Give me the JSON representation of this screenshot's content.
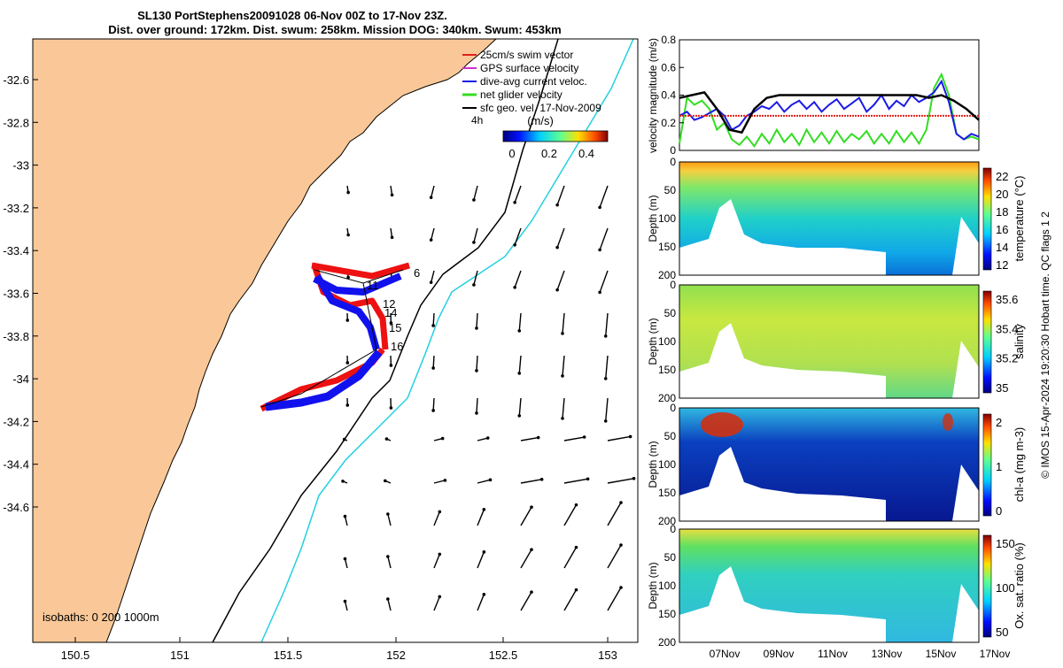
{
  "title": {
    "line1": "SL130 PortStephens20091028 06-Nov 00Z to 17-Nov 23Z.",
    "line2": "Dist. over ground: 172km. Dist. swum: 258km. Mission DOG: 340km. Swum: 453km"
  },
  "map": {
    "lon_ticks": [
      "150.5",
      "151",
      "151.5",
      "152",
      "152.5",
      "153"
    ],
    "lat_ticks": [
      "-32.6",
      "-32.8",
      "-33",
      "-33.2",
      "-33.4",
      "-33.6",
      "-33.8",
      "-34",
      "-34.2",
      "-34.4",
      "-34.6"
    ],
    "legend": [
      {
        "label": "25cm/s swim vector",
        "color": "#e0201a"
      },
      {
        "label": "GPS surface velocity",
        "color": "#d030c8"
      },
      {
        "label": "dive-avg current veloc.",
        "color": "#1a1ae6"
      },
      {
        "label": "net glider velocity",
        "color": "#33dd22"
      },
      {
        "label": "sfc geo. vel. 17-Nov-2009",
        "color": "#000000"
      }
    ],
    "vector_key": "4h",
    "colorbar_unit": "(m/s)",
    "colorbar_ticks": [
      "0",
      "0.2",
      "0.4"
    ],
    "day_labels": [
      "6",
      "11",
      "12",
      "14",
      "15",
      "16"
    ],
    "isobaths": "isobaths: 0   200  1000m",
    "land_color": "#fac898",
    "colors": {
      "isobath_200": "#000000",
      "isobath_1000": "#22d0e0",
      "track_red": "#ee1111",
      "track_blue": "#1111ee"
    }
  },
  "chart_data": [
    {
      "type": "line",
      "title": "",
      "ylabel": "velocity magnitude (m/s)",
      "ylim": [
        0,
        0.8
      ],
      "yticks": [
        "0",
        "0.2",
        "0.4",
        "0.6",
        "0.8"
      ],
      "xlim_days": [
        6,
        18
      ],
      "series": [
        {
          "name": "net glider velocity",
          "color": "#33dd22",
          "x": [
            6.0,
            6.3,
            6.6,
            6.9,
            7.2,
            7.5,
            7.8,
            8.1,
            8.4,
            8.7,
            9.0,
            9.3,
            9.6,
            9.9,
            10.2,
            10.5,
            10.8,
            11.1,
            11.4,
            11.7,
            12.0,
            12.3,
            12.6,
            12.9,
            13.2,
            13.5,
            13.8,
            14.1,
            14.4,
            14.7,
            15.0,
            15.3,
            15.6,
            15.9,
            16.2,
            16.5,
            16.8,
            17.1,
            17.4,
            17.7,
            18.0
          ],
          "y": [
            0.05,
            0.38,
            0.33,
            0.36,
            0.3,
            0.15,
            0.2,
            0.08,
            0.04,
            0.1,
            0.03,
            0.12,
            0.05,
            0.15,
            0.06,
            0.12,
            0.04,
            0.15,
            0.06,
            0.13,
            0.05,
            0.14,
            0.06,
            0.12,
            0.08,
            0.14,
            0.05,
            0.12,
            0.05,
            0.14,
            0.06,
            0.13,
            0.05,
            0.15,
            0.45,
            0.55,
            0.4,
            0.12,
            0.08,
            0.1,
            0.08
          ]
        },
        {
          "name": "dive-avg current veloc.",
          "color": "#1a1ae6",
          "x": [
            6.0,
            6.3,
            6.6,
            6.9,
            7.2,
            7.5,
            7.8,
            8.1,
            8.4,
            8.7,
            9.0,
            9.3,
            9.6,
            9.9,
            10.2,
            10.5,
            10.8,
            11.1,
            11.4,
            11.7,
            12.0,
            12.3,
            12.6,
            12.9,
            13.2,
            13.5,
            13.8,
            14.1,
            14.4,
            14.7,
            15.0,
            15.3,
            15.6,
            15.9,
            16.2,
            16.5,
            16.8,
            17.1,
            17.4,
            17.7,
            18.0
          ],
          "y": [
            0.25,
            0.28,
            0.22,
            0.24,
            0.27,
            0.3,
            0.25,
            0.15,
            0.18,
            0.25,
            0.28,
            0.32,
            0.3,
            0.35,
            0.28,
            0.33,
            0.36,
            0.3,
            0.35,
            0.28,
            0.33,
            0.37,
            0.3,
            0.34,
            0.38,
            0.28,
            0.33,
            0.4,
            0.3,
            0.36,
            0.32,
            0.4,
            0.35,
            0.38,
            0.42,
            0.5,
            0.35,
            0.12,
            0.08,
            0.12,
            0.1
          ]
        },
        {
          "name": "25cm/s swim vector",
          "color": "#e0201a",
          "x": [
            6.0,
            18.0
          ],
          "y": [
            0.25,
            0.25
          ]
        },
        {
          "name": "sfc geo. vel. 17-Nov-2009",
          "color": "#000000",
          "x": [
            6.0,
            6.5,
            7.0,
            7.5,
            8.0,
            8.5,
            9.0,
            9.5,
            10.0,
            11.0,
            12.0,
            13.0,
            14.0,
            15.0,
            15.5,
            16.0,
            16.5,
            17.0,
            17.5,
            18.0
          ],
          "y": [
            0.38,
            0.4,
            0.42,
            0.3,
            0.15,
            0.13,
            0.3,
            0.38,
            0.4,
            0.4,
            0.4,
            0.4,
            0.4,
            0.4,
            0.4,
            0.38,
            0.4,
            0.36,
            0.3,
            0.22
          ]
        }
      ]
    },
    {
      "type": "heatmap",
      "ylabel": "Depth (m)",
      "colorbar_label": "temperature (°C)",
      "colorbar_ticks": [
        "12",
        "14",
        "16",
        "18",
        "20",
        "22"
      ],
      "yticks": [
        "0",
        "50",
        "100",
        "150",
        "200"
      ],
      "xlim_days": [
        6,
        18
      ]
    },
    {
      "type": "heatmap",
      "ylabel": "Depth (m)",
      "colorbar_label": "salinity",
      "colorbar_ticks": [
        "35",
        "35.2",
        "35.4",
        "35.6"
      ],
      "yticks": [
        "0",
        "50",
        "100",
        "150",
        "200"
      ],
      "xlim_days": [
        6,
        18
      ]
    },
    {
      "type": "heatmap",
      "ylabel": "Depth (m)",
      "colorbar_label": "chl-a (mg m-3)",
      "colorbar_ticks": [
        "0",
        "1",
        "2"
      ],
      "yticks": [
        "0",
        "50",
        "100",
        "150",
        "200"
      ],
      "xlim_days": [
        6,
        18
      ]
    },
    {
      "type": "heatmap",
      "ylabel": "Depth (m)",
      "colorbar_label": "Ox. sat. ratio (%)",
      "colorbar_ticks": [
        "50",
        "100",
        "150"
      ],
      "yticks": [
        "0",
        "50",
        "100",
        "150",
        "200"
      ],
      "xlim_days": [
        6,
        18
      ],
      "x_ticks": [
        "07Nov",
        "09Nov",
        "11Nov",
        "13Nov",
        "15Nov",
        "17Nov"
      ]
    }
  ],
  "credit": "© IMOS 15-Apr-2024 19:20:30 Hobart time. QC flags 1  2"
}
